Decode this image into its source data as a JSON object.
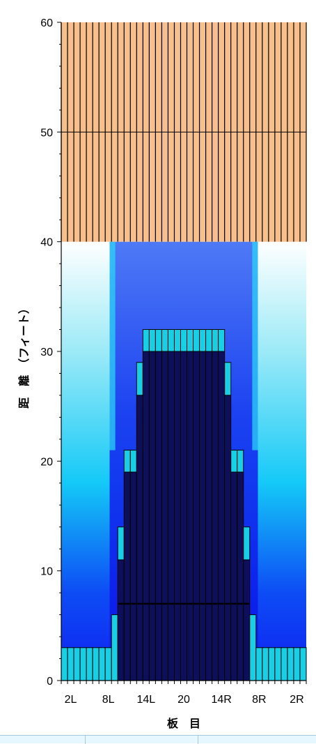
{
  "chart_data": {
    "type": "bar",
    "xlabel": "板　目",
    "ylabel": "距　離　（フィート）",
    "ylim": [
      0,
      60
    ],
    "y_ticks": [
      0,
      10,
      20,
      30,
      40,
      50,
      60
    ],
    "x_tick_labels": [
      "2L",
      "8L",
      "14L",
      "20",
      "14R",
      "8R",
      "2R"
    ],
    "boards": 39,
    "colors": {
      "dark": "#0d0f5a",
      "cyan": "#19cfe6",
      "peach": "#f7bf8c",
      "blue": "#0a1ef0",
      "light_cyan": "#2cd4f5"
    },
    "background_band": {
      "from": 40,
      "to": 60,
      "color": "#f7bf8c"
    },
    "reference_line": {
      "y": 7
    },
    "series": [
      {
        "values": [
          3,
          3,
          3,
          3,
          3,
          3,
          3,
          3,
          6,
          11,
          19,
          19,
          26,
          30,
          30,
          30,
          30,
          30,
          30,
          30,
          30,
          30,
          30,
          30,
          30,
          30,
          26,
          19,
          19,
          11,
          6,
          3,
          3,
          3,
          3,
          3,
          3,
          3,
          3
        ],
        "cap_tops": [
          3,
          3,
          3,
          3,
          3,
          3,
          3,
          3,
          6,
          14,
          21,
          21,
          29,
          32,
          32,
          32,
          32,
          32,
          32,
          32,
          32,
          32,
          32,
          32,
          32,
          32,
          29,
          21,
          21,
          14,
          6,
          3,
          3,
          3,
          3,
          3,
          3,
          3,
          3
        ]
      }
    ]
  }
}
